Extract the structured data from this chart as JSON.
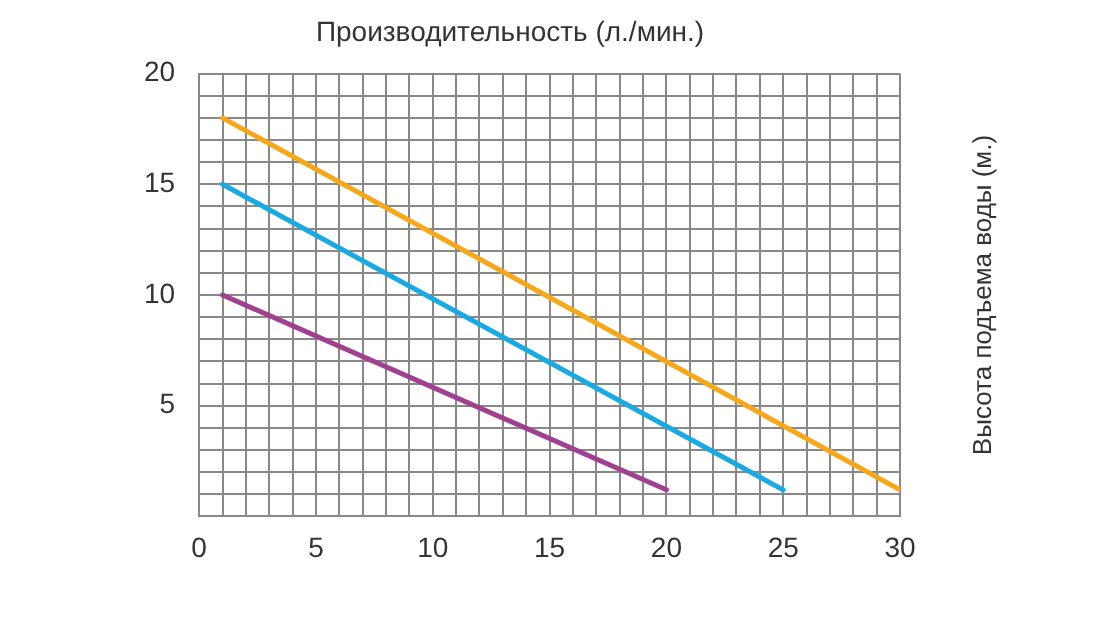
{
  "chart_data": {
    "type": "line",
    "title": "Производительность (л./мин.)",
    "ylabel": "Высота подъема воды (м.)",
    "xlim": [
      0,
      30
    ],
    "xticks": [
      0,
      {
        "value": 1,
        "label": null
      },
      {
        "value": 2,
        "label": null
      },
      {
        "value": 3,
        "label": null
      },
      {
        "value": 4,
        "label": null
      },
      5,
      {
        "value": 6,
        "label": null
      },
      {
        "value": 7,
        "label": null
      },
      {
        "value": 8,
        "label": null
      },
      {
        "value": 9,
        "label": null
      },
      10,
      {
        "value": 11,
        "label": null
      },
      {
        "value": 12,
        "label": null
      },
      {
        "value": 13,
        "label": null
      },
      {
        "value": 14,
        "label": null
      },
      15,
      {
        "value": 16,
        "label": null
      },
      {
        "value": 17,
        "label": null
      },
      {
        "value": 18,
        "label": null
      },
      {
        "value": 19,
        "label": null
      },
      20,
      {
        "value": 21,
        "label": null
      },
      {
        "value": 22,
        "label": null
      },
      {
        "value": 23,
        "label": null
      },
      {
        "value": 24,
        "label": null
      },
      25,
      {
        "value": 26,
        "label": null
      },
      {
        "value": 27,
        "label": null
      },
      {
        "value": 28,
        "label": null
      },
      {
        "value": 29,
        "label": null
      },
      30
    ],
    "ylim": [
      0,
      20
    ],
    "yticks": [
      {
        "value": 0,
        "label": null
      },
      {
        "value": 1,
        "label": null
      },
      {
        "value": 2,
        "label": null
      },
      {
        "value": 3,
        "label": null
      },
      {
        "value": 4,
        "label": null
      },
      5,
      {
        "value": 6,
        "label": null
      },
      {
        "value": 7,
        "label": null
      },
      {
        "value": 8,
        "label": null
      },
      {
        "value": 9,
        "label": null
      },
      10,
      {
        "value": 11,
        "label": null
      },
      {
        "value": 12,
        "label": null
      },
      {
        "value": 13,
        "label": null
      },
      {
        "value": 14,
        "label": null
      },
      15,
      {
        "value": 16,
        "label": null
      },
      {
        "value": 17,
        "label": null
      },
      {
        "value": 18,
        "label": null
      },
      {
        "value": 19,
        "label": null
      },
      20
    ],
    "grid": true,
    "legend": false,
    "marker": "none",
    "line_style": "solid",
    "series": [
      {
        "color": "#a0418f",
        "x": [
          1,
          20
        ],
        "values": [
          10,
          1.2
        ]
      },
      {
        "color": "#1aa9e0",
        "x": [
          1,
          25
        ],
        "values": [
          15,
          1.2
        ]
      },
      {
        "color": "#f5a81c",
        "x": [
          1,
          30
        ],
        "values": [
          18,
          1.2
        ]
      }
    ]
  }
}
